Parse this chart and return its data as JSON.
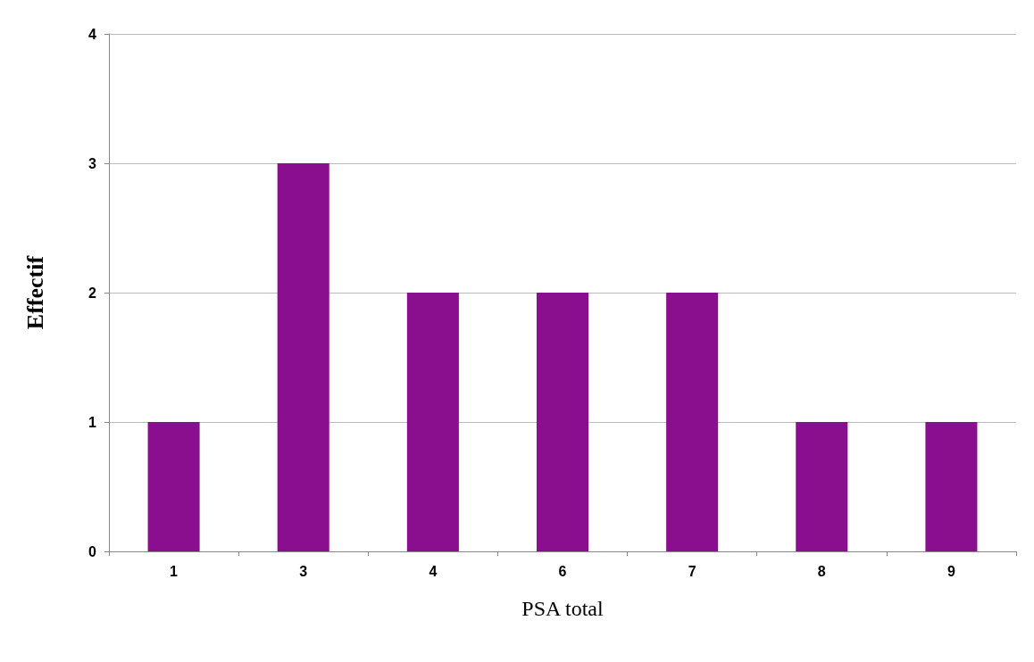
{
  "chart_data": {
    "type": "bar",
    "xlabel": "PSA total",
    "ylabel": "Effectif",
    "categories": [
      "1",
      "3",
      "4",
      "6",
      "7",
      "8",
      "9"
    ],
    "values": [
      1,
      3,
      2,
      2,
      2,
      1,
      1
    ],
    "color": "#8a0f8f",
    "ylim": [
      0,
      4
    ],
    "yticks": [
      0,
      1,
      2,
      3,
      4
    ],
    "grid": "y"
  }
}
